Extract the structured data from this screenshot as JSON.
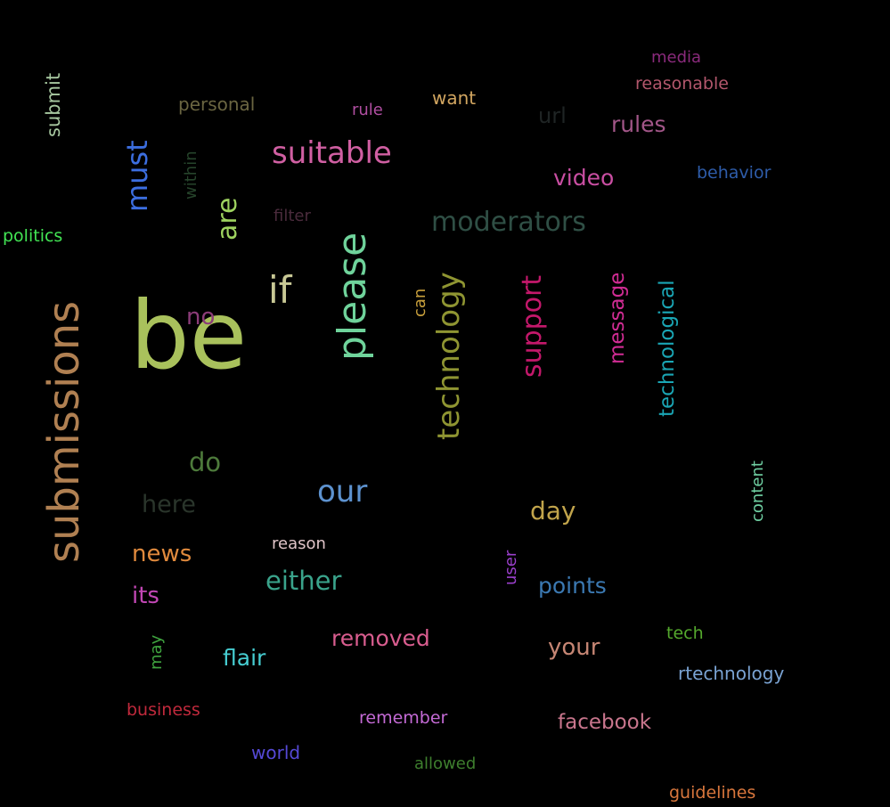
{
  "words": [
    {
      "text": "be",
      "color": "#a9c15c"
    },
    {
      "text": "submissions",
      "color": "#b08052"
    },
    {
      "text": "please",
      "color": "#6fd39b"
    },
    {
      "text": "technology",
      "color": "#8f9532"
    },
    {
      "text": "moderators",
      "color": "#2f4f45"
    },
    {
      "text": "suitable",
      "color": "#d05fa2"
    },
    {
      "text": "must",
      "color": "#3c6ee0"
    },
    {
      "text": "are",
      "color": "#9ed35f"
    },
    {
      "text": "if",
      "color": "#c8c895"
    },
    {
      "text": "support",
      "color": "#c4186b"
    },
    {
      "text": "our",
      "color": "#5d92cf"
    },
    {
      "text": "technological",
      "color": "#1aa6b5"
    },
    {
      "text": "message",
      "color": "#d12c94"
    },
    {
      "text": "either",
      "color": "#3aa38b"
    },
    {
      "text": "day",
      "color": "#c1a44b"
    },
    {
      "text": "do",
      "color": "#4d7a3b"
    },
    {
      "text": "removed",
      "color": "#d95d8f"
    },
    {
      "text": "here",
      "color": "#2a352b"
    },
    {
      "text": "news",
      "color": "#e08a3d"
    },
    {
      "text": "video",
      "color": "#c94ea2"
    },
    {
      "text": "points",
      "color": "#3b79b2"
    },
    {
      "text": "your",
      "color": "#c68674"
    },
    {
      "text": "rules",
      "color": "#a25688"
    },
    {
      "text": "no",
      "color": "#8b3c78"
    },
    {
      "text": "its",
      "color": "#c247b5"
    },
    {
      "text": "flair",
      "color": "#46cdd1"
    },
    {
      "text": "facebook",
      "color": "#c9768d"
    },
    {
      "text": "want",
      "color": "#d1a560"
    },
    {
      "text": "url",
      "color": "#1f2424"
    },
    {
      "text": "submit",
      "color": "#a7c8a0"
    },
    {
      "text": "politics",
      "color": "#42e454"
    },
    {
      "text": "personal",
      "color": "#6a6541"
    },
    {
      "text": "rule",
      "color": "#b04ea1"
    },
    {
      "text": "media",
      "color": "#8a2a7c"
    },
    {
      "text": "reasonable",
      "color": "#b2576c"
    },
    {
      "text": "behavior",
      "color": "#2e5ca9"
    },
    {
      "text": "within",
      "color": "#26442b"
    },
    {
      "text": "filter",
      "color": "#4a2b3c"
    },
    {
      "text": "can",
      "color": "#c9a03c"
    },
    {
      "text": "content",
      "color": "#6fcfa2"
    },
    {
      "text": "reason",
      "color": "#e0c4c8"
    },
    {
      "text": "user",
      "color": "#9a3fcb"
    },
    {
      "text": "tech",
      "color": "#54a82d"
    },
    {
      "text": "rtechnology",
      "color": "#7aa3d3"
    },
    {
      "text": "may",
      "color": "#3fa43f"
    },
    {
      "text": "business",
      "color": "#c0293c"
    },
    {
      "text": "remember",
      "color": "#c46ad5"
    },
    {
      "text": "world",
      "color": "#5549d6"
    },
    {
      "text": "allowed",
      "color": "#3e7f2e"
    },
    {
      "text": "guidelines",
      "color": "#d8763c"
    }
  ]
}
